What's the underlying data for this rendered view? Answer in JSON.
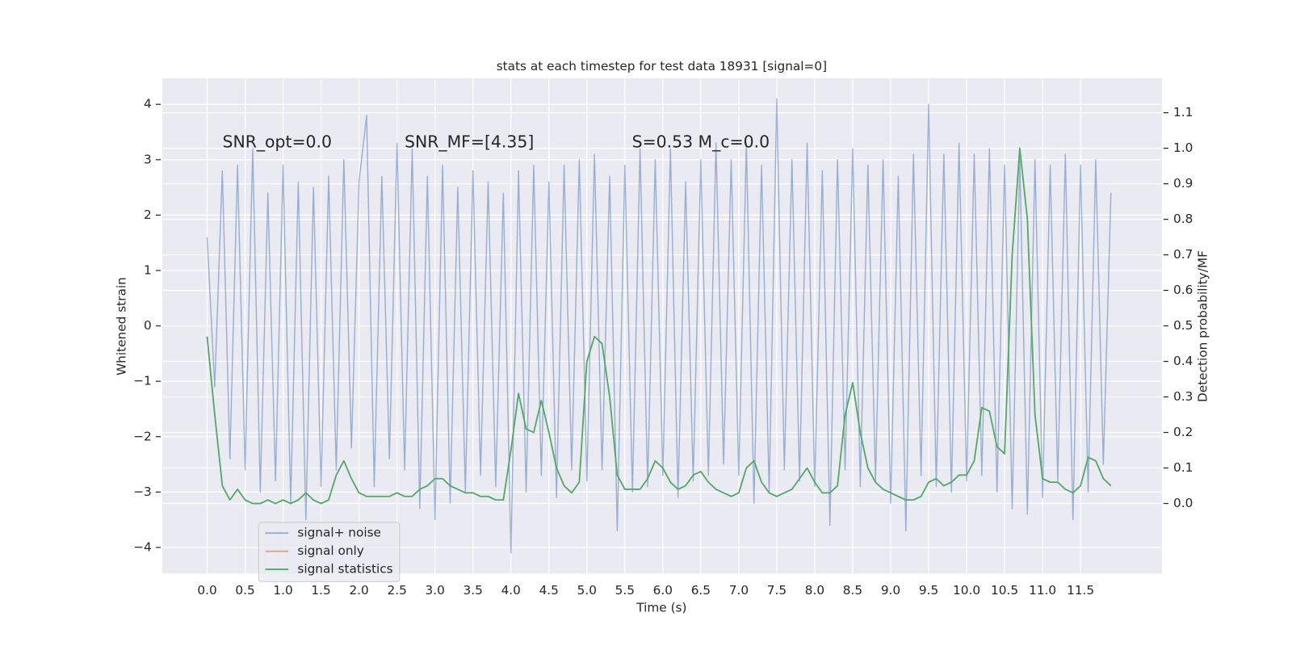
{
  "chart_data": {
    "type": "line",
    "title": "stats at each timestep for test data 18931 [signal=0]",
    "xlabel": "Time (s)",
    "ylabel": "Whitened strain",
    "y2label": "Detection probability/MF",
    "annotations": [
      "SNR_opt=0.0",
      "SNR_MF=[4.35]",
      "S=0.53   M_c=0.0"
    ],
    "x": [
      0.0,
      0.1,
      0.2,
      0.3,
      0.4,
      0.5,
      0.6,
      0.7,
      0.8,
      0.9,
      1.0,
      1.1,
      1.2,
      1.3,
      1.4,
      1.5,
      1.6,
      1.7,
      1.8,
      1.9,
      2.0,
      2.1,
      2.2,
      2.3,
      2.4,
      2.5,
      2.6,
      2.7,
      2.8,
      2.9,
      3.0,
      3.1,
      3.2,
      3.3,
      3.4,
      3.5,
      3.6,
      3.7,
      3.8,
      3.9,
      4.0,
      4.1,
      4.2,
      4.3,
      4.4,
      4.5,
      4.6,
      4.7,
      4.8,
      4.9,
      5.0,
      5.1,
      5.2,
      5.3,
      5.4,
      5.5,
      5.6,
      5.7,
      5.8,
      5.9,
      6.0,
      6.1,
      6.2,
      6.3,
      6.4,
      6.5,
      6.6,
      6.7,
      6.8,
      6.9,
      7.0,
      7.1,
      7.2,
      7.3,
      7.4,
      7.5,
      7.6,
      7.7,
      7.8,
      7.9,
      8.0,
      8.1,
      8.2,
      8.3,
      8.4,
      8.5,
      8.6,
      8.7,
      8.8,
      8.9,
      9.0,
      9.1,
      9.2,
      9.3,
      9.4,
      9.5,
      9.6,
      9.7,
      9.8,
      9.9,
      10.0,
      10.1,
      10.2,
      10.3,
      10.4,
      10.5,
      10.6,
      10.7,
      10.8,
      10.9,
      11.0,
      11.1,
      11.2,
      11.3,
      11.4,
      11.5,
      11.6,
      11.7,
      11.8,
      11.9
    ],
    "series": [
      {
        "name": "signal+ noise",
        "color": "#4c72b0",
        "alpha": 0.5,
        "values": [
          1.6,
          -1.1,
          2.8,
          -2.4,
          2.9,
          -2.6,
          3.2,
          -3.0,
          2.4,
          -2.8,
          2.9,
          -3.2,
          2.6,
          -3.5,
          2.5,
          -2.9,
          2.7,
          -2.6,
          3.0,
          -2.2,
          2.6,
          3.8,
          -2.9,
          2.7,
          -2.4,
          3.3,
          -2.6,
          3.2,
          -3.3,
          2.7,
          -3.5,
          2.9,
          -3.2,
          2.5,
          -3.0,
          2.8,
          -2.7,
          2.6,
          -2.9,
          2.4,
          -4.1,
          2.8,
          -3.0,
          2.9,
          -2.7,
          2.6,
          -3.1,
          2.9,
          -2.6,
          3.0,
          -2.8,
          3.1,
          -2.6,
          2.7,
          -3.7,
          2.9,
          -3.0,
          3.2,
          -2.9,
          3.0,
          -2.7,
          3.2,
          -3.1,
          2.6,
          -2.8,
          3.0,
          -2.7,
          3.3,
          -2.5,
          3.0,
          -2.7,
          3.3,
          -3.2,
          2.9,
          -3.0,
          4.1,
          -2.6,
          3.0,
          -2.8,
          3.3,
          -2.9,
          2.8,
          -3.6,
          3.0,
          -2.6,
          3.2,
          -2.9,
          2.9,
          -2.8,
          3.0,
          -3.2,
          2.7,
          -3.7,
          3.1,
          -2.7,
          4.0,
          -2.9,
          3.1,
          -3.0,
          3.3,
          -2.8,
          3.1,
          -2.7,
          3.2,
          -3.0,
          2.9,
          -3.3,
          3.0,
          -3.4,
          3.0,
          -3.1,
          2.9,
          -2.8,
          3.1,
          -3.5,
          2.9,
          -3.0,
          3.0,
          -2.5,
          2.4
        ]
      },
      {
        "name": "signal only",
        "color": "#dd8452",
        "alpha": 0.7,
        "values": [
          null,
          null,
          null,
          null,
          null,
          null,
          null,
          null,
          null,
          null,
          null,
          null,
          null,
          null,
          null,
          null,
          null,
          null,
          null,
          null,
          null,
          null,
          null,
          null,
          null,
          null,
          null,
          null,
          null,
          null,
          null,
          null,
          null,
          null,
          null,
          null,
          null,
          null,
          null,
          null,
          null,
          null,
          null,
          null,
          null,
          null,
          null,
          null,
          null,
          null,
          null,
          null,
          null,
          null,
          null,
          null,
          null,
          null,
          null,
          null,
          null,
          null,
          null,
          null,
          null,
          null,
          null,
          null,
          null,
          null,
          null,
          null,
          null,
          null,
          null,
          null,
          null,
          null,
          null,
          null,
          null,
          null,
          null,
          null,
          null,
          null,
          null,
          null,
          null,
          null,
          null,
          null,
          null,
          null,
          null,
          null,
          null,
          null,
          null,
          null,
          null,
          null,
          null,
          null,
          null,
          null,
          null,
          null,
          null,
          null,
          null,
          null,
          null,
          null,
          null,
          null,
          null,
          null,
          null,
          null
        ]
      },
      {
        "name": "signal statistics",
        "color": "#55a868",
        "alpha": 1,
        "axis": "y2",
        "values": [
          0.47,
          0.25,
          0.05,
          0.01,
          0.04,
          0.01,
          0.0,
          0.0,
          0.01,
          0.0,
          0.01,
          0.0,
          0.01,
          0.03,
          0.01,
          0.0,
          0.01,
          0.08,
          0.12,
          0.07,
          0.03,
          0.02,
          0.02,
          0.02,
          0.02,
          0.03,
          0.02,
          0.02,
          0.04,
          0.05,
          0.07,
          0.07,
          0.05,
          0.04,
          0.03,
          0.03,
          0.02,
          0.02,
          0.01,
          0.01,
          0.15,
          0.31,
          0.21,
          0.2,
          0.29,
          0.2,
          0.1,
          0.05,
          0.03,
          0.06,
          0.4,
          0.47,
          0.45,
          0.3,
          0.08,
          0.04,
          0.04,
          0.04,
          0.07,
          0.12,
          0.1,
          0.06,
          0.04,
          0.05,
          0.08,
          0.09,
          0.06,
          0.04,
          0.03,
          0.02,
          0.03,
          0.1,
          0.12,
          0.06,
          0.03,
          0.02,
          0.03,
          0.04,
          0.07,
          0.1,
          0.06,
          0.03,
          0.03,
          0.05,
          0.25,
          0.34,
          0.2,
          0.1,
          0.06,
          0.04,
          0.03,
          0.02,
          0.01,
          0.01,
          0.02,
          0.06,
          0.07,
          0.05,
          0.06,
          0.08,
          0.08,
          0.12,
          0.27,
          0.26,
          0.16,
          0.14,
          0.7,
          1.0,
          0.8,
          0.25,
          0.07,
          0.06,
          0.06,
          0.04,
          0.03,
          0.05,
          0.13,
          0.12,
          0.07,
          0.05
        ]
      }
    ],
    "xlim": [
      -0.59,
      12.57
    ],
    "ylim": [
      -4.47,
      4.47
    ],
    "y2lim": [
      -0.197,
      1.197
    ],
    "xticks": [
      {
        "value": 0,
        "label": "0.0"
      },
      {
        "value": 0.5,
        "label": "0.5"
      },
      {
        "value": 1,
        "label": "1.0"
      },
      {
        "value": 1.5,
        "label": "1.5"
      },
      {
        "value": 2,
        "label": "2.0"
      },
      {
        "value": 2.5,
        "label": "2.5"
      },
      {
        "value": 3,
        "label": "3.0"
      },
      {
        "value": 3.5,
        "label": "3.5"
      },
      {
        "value": 4,
        "label": "4.0"
      },
      {
        "value": 4.5,
        "label": "4.5"
      },
      {
        "value": 5,
        "label": "5.0"
      },
      {
        "value": 5.5,
        "label": "5.5"
      },
      {
        "value": 6,
        "label": "6.0"
      },
      {
        "value": 6.5,
        "label": "6.5"
      },
      {
        "value": 7,
        "label": "7.0"
      },
      {
        "value": 7.5,
        "label": "7.5"
      },
      {
        "value": 8,
        "label": "8.0"
      },
      {
        "value": 8.5,
        "label": "8.5"
      },
      {
        "value": 9,
        "label": "9.0"
      },
      {
        "value": 9.5,
        "label": "9.5"
      },
      {
        "value": 10,
        "label": "10.0"
      },
      {
        "value": 10.5,
        "label": "10.5"
      },
      {
        "value": 11,
        "label": "11.0"
      },
      {
        "value": 11.5,
        "label": "11.5"
      }
    ],
    "yticks": [
      {
        "value": -4,
        "label": "−4"
      },
      {
        "value": -3,
        "label": "−3"
      },
      {
        "value": -2,
        "label": "−2"
      },
      {
        "value": -1,
        "label": "−1"
      },
      0,
      1,
      2,
      3,
      4
    ],
    "y2ticks": [
      {
        "value": 0,
        "label": "0.0"
      },
      {
        "value": 0.1,
        "label": "0.1"
      },
      {
        "value": 0.2,
        "label": "0.2"
      },
      {
        "value": 0.3,
        "label": "0.3"
      },
      {
        "value": 0.4,
        "label": "0.4"
      },
      {
        "value": 0.5,
        "label": "0.5"
      },
      {
        "value": 0.6,
        "label": "0.6"
      },
      {
        "value": 0.7,
        "label": "0.7"
      },
      {
        "value": 0.8,
        "label": "0.8"
      },
      {
        "value": 0.9,
        "label": "0.9"
      },
      {
        "value": 1,
        "label": "1.0"
      },
      {
        "value": 1.1,
        "label": "1.1"
      }
    ],
    "grid": true,
    "legend": "lower left"
  }
}
